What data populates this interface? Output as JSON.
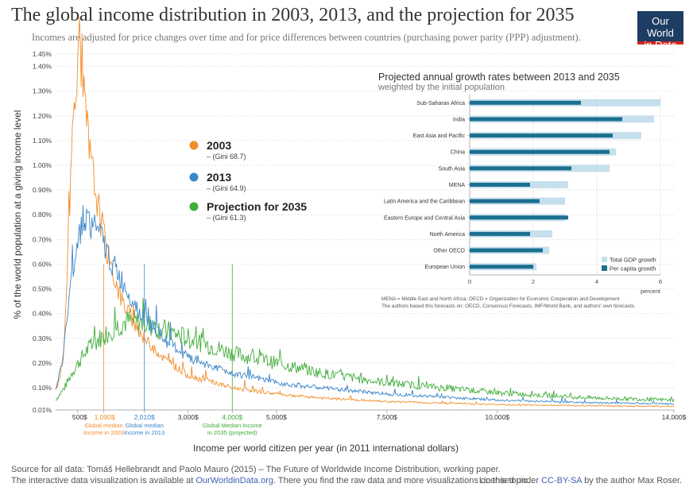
{
  "header": {
    "title": "The global income distribution in 2003, 2013, and the projection for 2035",
    "subtitle": "Incomes are adjusted for price changes over time and for price differences between countries (purchasing power parity (PPP) adjustment).",
    "logo_line1": "Our World",
    "logo_line2": "in Data"
  },
  "colors": {
    "c2003": "#f28e2b",
    "c2013": "#3a86c8",
    "c2035": "#41ad3b",
    "light_bar": "#c6dfec",
    "dark_bar": "#1b6f8f"
  },
  "chart_data": [
    {
      "type": "line",
      "title": "The global income distribution in 2003, 2013, and the projection for 2035",
      "xlabel": "Income per world citizen per year (in 2011 international dollars)",
      "ylabel": "% of the world population at a giving income level",
      "xlim": [
        0,
        14000
      ],
      "ylim": [
        0.01,
        1.45
      ],
      "x_ticks": [
        {
          "v": 500,
          "label": "500$"
        },
        {
          "v": 1090,
          "label": "1,090$",
          "series": "2003"
        },
        {
          "v": 2010,
          "label": "2,010$",
          "series": "2013"
        },
        {
          "v": 3000,
          "label": "3,000$"
        },
        {
          "v": 4000,
          "label": "4,000$",
          "series": "2035"
        },
        {
          "v": 5000,
          "label": "5,000$"
        },
        {
          "v": 7500,
          "label": "7,500$"
        },
        {
          "v": 10000,
          "label": "10,000$"
        },
        {
          "v": 14000,
          "label": "14,000$"
        }
      ],
      "y_ticks": [
        {
          "v": 0.01,
          "label": "0.01%"
        },
        {
          "v": 0.1,
          "label": "0.10%"
        },
        {
          "v": 0.2,
          "label": "0.20%"
        },
        {
          "v": 0.3,
          "label": "0.30%"
        },
        {
          "v": 0.4,
          "label": "0.40%"
        },
        {
          "v": 0.5,
          "label": "0.50%"
        },
        {
          "v": 0.6,
          "label": "0.60%"
        },
        {
          "v": 0.7,
          "label": "0.70%"
        },
        {
          "v": 0.8,
          "label": "0.80%"
        },
        {
          "v": 0.9,
          "label": "0.90%"
        },
        {
          "v": 1.0,
          "label": "1.00%"
        },
        {
          "v": 1.1,
          "label": "1.10%"
        },
        {
          "v": 1.2,
          "label": "1.20%"
        },
        {
          "v": 1.3,
          "label": "1.30%"
        },
        {
          "v": 1.4,
          "label": "1.40%"
        },
        {
          "v": 1.45,
          "label": "1.45%"
        }
      ],
      "medians": [
        {
          "series": "2003",
          "value": 1090,
          "note_line1": "Global median",
          "note_line2": "income in 2003"
        },
        {
          "series": "2013",
          "value": 2010,
          "note_line1": "Global median",
          "note_line2": "income in 2013"
        },
        {
          "series": "2035",
          "value": 4000,
          "note_line1": "Global Median Income",
          "note_line2": "in 2035 (projected)"
        }
      ],
      "series": [
        {
          "key": "2003",
          "name": "2003",
          "gini": "– (Gini 68.7)",
          "points": [
            [
              0,
              0.09
            ],
            [
              100,
              0.14
            ],
            [
              200,
              0.3
            ],
            [
              300,
              0.75
            ],
            [
              400,
              1.2
            ],
            [
              450,
              1.35
            ],
            [
              500,
              1.44
            ],
            [
              550,
              1.38
            ],
            [
              650,
              1.25
            ],
            [
              800,
              1.0
            ],
            [
              1000,
              0.8
            ],
            [
              1200,
              0.62
            ],
            [
              1500,
              0.45
            ],
            [
              2000,
              0.3
            ],
            [
              2500,
              0.21
            ],
            [
              3000,
              0.15
            ],
            [
              4000,
              0.1
            ],
            [
              5000,
              0.075
            ],
            [
              6000,
              0.058
            ],
            [
              7500,
              0.044
            ],
            [
              10000,
              0.032
            ],
            [
              12000,
              0.027
            ],
            [
              14000,
              0.024
            ]
          ]
        },
        {
          "key": "2013",
          "name": "2013",
          "gini": "– (Gini 64.9)",
          "points": [
            [
              0,
              0.09
            ],
            [
              150,
              0.2
            ],
            [
              300,
              0.45
            ],
            [
              450,
              0.65
            ],
            [
              600,
              0.78
            ],
            [
              700,
              0.8
            ],
            [
              800,
              0.76
            ],
            [
              1000,
              0.72
            ],
            [
              1200,
              0.63
            ],
            [
              1500,
              0.53
            ],
            [
              2000,
              0.38
            ],
            [
              2500,
              0.29
            ],
            [
              3000,
              0.22
            ],
            [
              4000,
              0.16
            ],
            [
              5000,
              0.12
            ],
            [
              6000,
              0.1
            ],
            [
              7500,
              0.075
            ],
            [
              10000,
              0.05
            ],
            [
              12000,
              0.04
            ],
            [
              14000,
              0.035
            ]
          ]
        },
        {
          "key": "2035",
          "name": "Projection for 2035",
          "gini": "– (Gini 61.3)",
          "points": [
            [
              0,
              0.05
            ],
            [
              200,
              0.1
            ],
            [
              400,
              0.17
            ],
            [
              700,
              0.25
            ],
            [
              1000,
              0.3
            ],
            [
              1300,
              0.34
            ],
            [
              1600,
              0.37
            ],
            [
              2000,
              0.36
            ],
            [
              2500,
              0.33
            ],
            [
              3000,
              0.3
            ],
            [
              3500,
              0.27
            ],
            [
              4000,
              0.24
            ],
            [
              5000,
              0.2
            ],
            [
              6000,
              0.16
            ],
            [
              7500,
              0.12
            ],
            [
              10000,
              0.08
            ],
            [
              12000,
              0.06
            ],
            [
              14000,
              0.05
            ]
          ]
        }
      ]
    },
    {
      "type": "bar",
      "title": "Projected annual growth rates between 2013 and 2035",
      "subtitle": "weighted by the initial population",
      "xlabel": "percent",
      "xlim": [
        0,
        6
      ],
      "x_ticks": [
        0,
        2,
        4,
        6
      ],
      "categories": [
        "Sub-Saharan Africa",
        "India",
        "East Asia and Pacific",
        "China",
        "South Asia",
        "MENA",
        "Latin America and the Caribbean",
        "Eastern Europe and Central Asia",
        "North America",
        "Other OECD",
        "European Union"
      ],
      "series": [
        {
          "name": "Total GDP growth",
          "values": [
            6.0,
            5.8,
            5.4,
            4.6,
            4.4,
            3.1,
            3.0,
            3.0,
            2.6,
            2.5,
            2.1
          ]
        },
        {
          "name": "Per capita growth",
          "values": [
            3.5,
            4.8,
            4.5,
            4.4,
            3.2,
            1.9,
            2.2,
            3.1,
            1.9,
            2.3,
            2.0
          ]
        }
      ],
      "legend": [
        "Total GDP growth",
        "Per capita growth"
      ],
      "note_line1": "MENA = Middle East and North Africa; OECD = Organization for Economic Cooperation and Development",
      "note_line2": "The authors based this forecasts on: OECD, Consensus Forecasts, IMF/World Bank, and authors' own forecasts."
    }
  ],
  "footer": {
    "source": "Source for all data: Tomáš Hellebrandt and Paolo Mauro (2015) – The Future of Worldwide Income Distribution, working paper.",
    "viz_prefix": "The interactive data visualization is available at ",
    "viz_link": "OurWorldinData.org",
    "viz_suffix": ". There you find the raw data and more visualizations on this topic.",
    "license_prefix": "Licensed under ",
    "license_link": "CC-BY-SA",
    "license_suffix": " by the author Max Roser."
  }
}
